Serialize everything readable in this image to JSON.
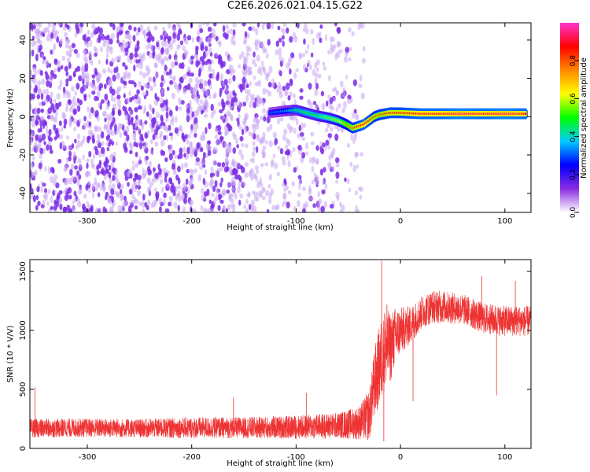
{
  "title": "C2E6.2026.021.04.15.G22",
  "colors": {
    "snr_line": "#ee3333",
    "scatter_dense": "#7b2be6",
    "scatter_light": "#c9a6f2",
    "axis": "#000000"
  },
  "chart_data": [
    {
      "type": "heatmap",
      "name": "spectrogram",
      "xlabel": "Height of straight line (km)",
      "ylabel": "Frequency (Hz)",
      "xlim": [
        -355,
        125
      ],
      "ylim": [
        -50,
        49
      ],
      "xticks": [
        -300,
        -200,
        -100,
        0,
        100
      ],
      "yticks": [
        -40,
        -20,
        0,
        20,
        40
      ],
      "description": "Dense purple noise speckles for heights below about -50 km; a narrow high-amplitude ridge near 0 to 2 Hz from about -50 km to 125 km, dipping to about -7 Hz near -45 km.",
      "ridge": {
        "x": [
          -125,
          -110,
          -100,
          -90,
          -80,
          -70,
          -60,
          -52,
          -46,
          -40,
          -35,
          -30,
          -25,
          -20,
          -10,
          0,
          20,
          40,
          60,
          80,
          100,
          120
        ],
        "y": [
          2,
          3,
          3.5,
          2,
          0.5,
          -0.5,
          -2,
          -4,
          -6,
          -5,
          -4,
          -2,
          0,
          1,
          2,
          2,
          1.5,
          1.5,
          1.5,
          1.5,
          1.5,
          1.5
        ],
        "amplitude": [
          0.3,
          0.35,
          0.45,
          0.5,
          0.5,
          0.55,
          0.6,
          0.7,
          0.8,
          0.85,
          0.9,
          0.85,
          0.8,
          0.8,
          0.85,
          0.85,
          0.9,
          0.9,
          0.95,
          0.9,
          0.95,
          0.9
        ]
      },
      "colorbar": {
        "label": "Normalized spectral amplitude",
        "range": [
          0,
          1
        ],
        "ticks": [
          "0.0",
          "0.2",
          "0.4",
          "0.6",
          "0.8"
        ],
        "stops": [
          "#ffffff",
          "#8a2be2",
          "#0000ff",
          "#00ccff",
          "#00ff00",
          "#ffff00",
          "#ff8800",
          "#ff0000",
          "#ff33cc"
        ]
      }
    },
    {
      "type": "line",
      "name": "snr",
      "xlabel": "Height of straight line (km)",
      "ylabel": "SNR (10 * V/V)",
      "xlim": [
        -355,
        125
      ],
      "ylim": [
        0,
        1600
      ],
      "xticks": [
        -300,
        -200,
        -100,
        0,
        100
      ],
      "yticks": [
        0,
        500,
        1000,
        1500
      ],
      "envelope": {
        "x": [
          -355,
          -300,
          -250,
          -200,
          -150,
          -100,
          -60,
          -40,
          -30,
          -25,
          -20,
          -15,
          -10,
          -5,
          0,
          5,
          10,
          15,
          20,
          30,
          40,
          60,
          80,
          100,
          125
        ],
        "mean": [
          170,
          175,
          170,
          175,
          175,
          180,
          195,
          215,
          280,
          550,
          700,
          850,
          850,
          950,
          1000,
          1020,
          1050,
          1100,
          1150,
          1200,
          1200,
          1180,
          1100,
          1080,
          1080
        ],
        "spread": [
          80,
          80,
          80,
          90,
          90,
          100,
          110,
          140,
          220,
          300,
          350,
          350,
          300,
          250,
          200,
          180,
          160,
          150,
          140,
          140,
          140,
          130,
          130,
          130,
          130
        ]
      },
      "spikes": [
        {
          "x": -350,
          "y": 520
        },
        {
          "x": -160,
          "y": 430
        },
        {
          "x": -90,
          "y": 470
        },
        {
          "x": -18,
          "y": 1590
        },
        {
          "x": -13,
          "y": 1220
        },
        {
          "x": -16,
          "y": 60
        },
        {
          "x": 12,
          "y": 400
        },
        {
          "x": 78,
          "y": 1460
        },
        {
          "x": 92,
          "y": 450
        },
        {
          "x": 110,
          "y": 1420
        }
      ]
    }
  ]
}
